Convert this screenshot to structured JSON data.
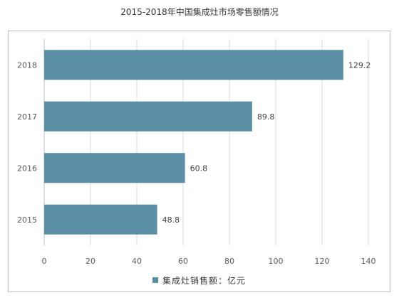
{
  "chart_data": {
    "type": "bar",
    "orientation": "horizontal",
    "title": "2015-2018年中国集成灶市场零售额情况",
    "categories": [
      "2018",
      "2017",
      "2016",
      "2015"
    ],
    "series": [
      {
        "name": "集成灶销售额：亿元",
        "values": [
          129.2,
          89.8,
          60.8,
          48.8
        ],
        "color": "#5a8fa5"
      }
    ],
    "xlim": [
      0,
      140
    ],
    "xticks": [
      0,
      20,
      40,
      60,
      80,
      100,
      120,
      140
    ],
    "grid": "vertical",
    "legend": "bottom"
  }
}
